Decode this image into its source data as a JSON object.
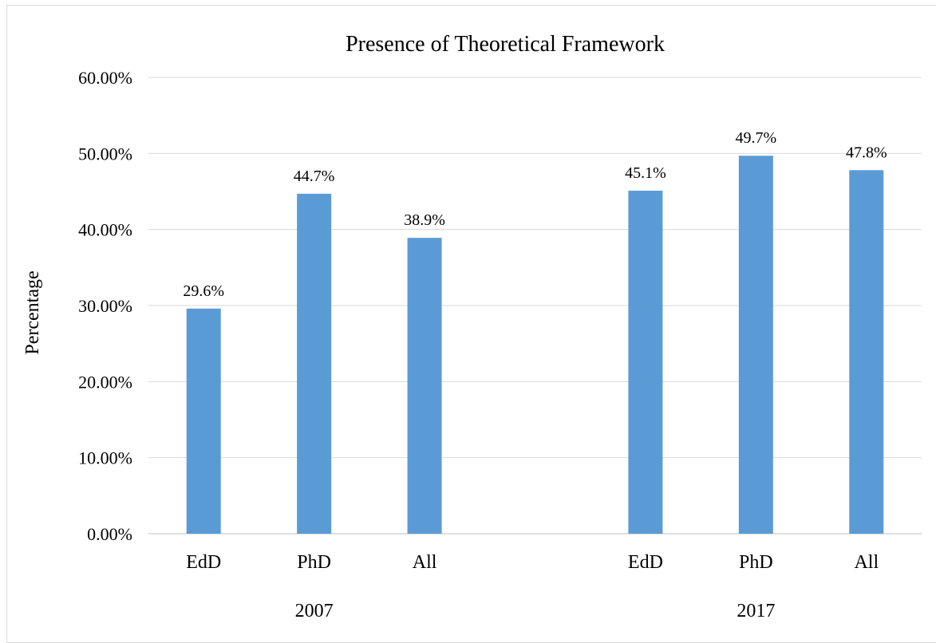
{
  "chart_data": {
    "type": "bar",
    "title": "Presence of Theoretical Framework",
    "xlabel": "",
    "ylabel": "Percentage",
    "ylim": [
      0,
      60
    ],
    "yticks": [
      "0.00%",
      "10.00%",
      "20.00%",
      "30.00%",
      "40.00%",
      "50.00%",
      "60.00%"
    ],
    "grid": true,
    "legend": "none",
    "groups": [
      {
        "name": "2007",
        "categories": [
          "EdD",
          "PhD",
          "All"
        ],
        "values": [
          29.6,
          44.7,
          38.9
        ],
        "labels": [
          "29.6%",
          "44.7%",
          "38.9%"
        ]
      },
      {
        "name": "2017",
        "categories": [
          "EdD",
          "PhD",
          "All"
        ],
        "values": [
          45.1,
          49.7,
          47.8
        ],
        "labels": [
          "45.1%",
          "49.7%",
          "47.8%"
        ]
      }
    ],
    "bar_color": "#5b9bd5"
  }
}
